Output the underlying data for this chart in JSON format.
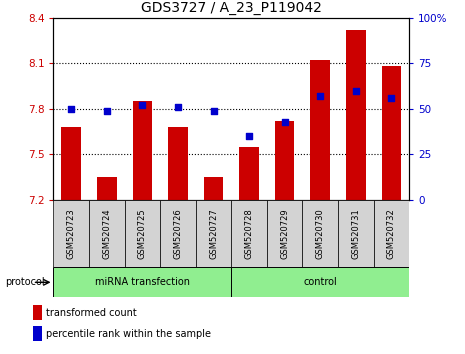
{
  "title": "GDS3727 / A_23_P119042",
  "samples": [
    "GSM520723",
    "GSM520724",
    "GSM520725",
    "GSM520726",
    "GSM520727",
    "GSM520728",
    "GSM520729",
    "GSM520730",
    "GSM520731",
    "GSM520732"
  ],
  "transformed_count": [
    7.68,
    7.35,
    7.85,
    7.68,
    7.35,
    7.55,
    7.72,
    8.12,
    8.32,
    8.08
  ],
  "percentile_rank": [
    50,
    49,
    52,
    51,
    49,
    35,
    43,
    57,
    60,
    56
  ],
  "ylim_left": [
    7.2,
    8.4
  ],
  "ylim_right": [
    0,
    100
  ],
  "yticks_left": [
    7.2,
    7.5,
    7.8,
    8.1,
    8.4
  ],
  "yticks_right": [
    0,
    25,
    50,
    75,
    100
  ],
  "ytick_labels_right": [
    "0",
    "25",
    "50",
    "75",
    "100%"
  ],
  "hlines": [
    7.5,
    7.8,
    8.1
  ],
  "bar_color": "#cc0000",
  "dot_color": "#0000cc",
  "bar_bottom": 7.2,
  "bar_width": 0.55,
  "group1_label": "miRNA transfection",
  "group2_label": "control",
  "group1_indices": [
    0,
    1,
    2,
    3,
    4
  ],
  "group2_indices": [
    5,
    6,
    7,
    8,
    9
  ],
  "group_color": "#90ee90",
  "protocol_label": "protocol",
  "legend_red_label": "transformed count",
  "legend_blue_label": "percentile rank within the sample",
  "bar_color_legend": "#cc0000",
  "dot_color_legend": "#0000cc",
  "tick_label_color_left": "#cc0000",
  "tick_label_color_right": "#0000cc",
  "xlabel_bg": "#d3d3d3",
  "title_fontsize": 10,
  "axis_fontsize": 7.5
}
